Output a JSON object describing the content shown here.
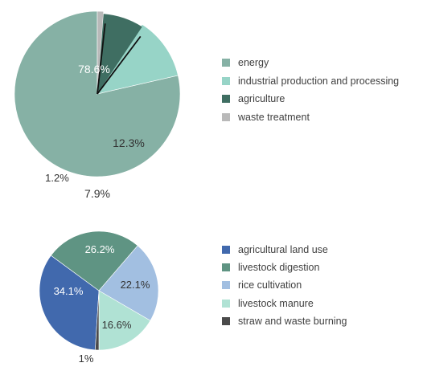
{
  "chart_data": [
    {
      "type": "pie",
      "slices": [
        {
          "label": "energy",
          "value": 78.6,
          "value_label": "78.6%",
          "color": "#86b1a5"
        },
        {
          "label": "industrial production and processing",
          "value": 12.3,
          "value_label": "12.3%",
          "color": "#97d4c7"
        },
        {
          "label": "agriculture",
          "value": 7.9,
          "value_label": "7.9%",
          "color": "#3f6e62",
          "exploded": true
        },
        {
          "label": "waste treatment",
          "value": 1.2,
          "value_label": "1.2%",
          "color": "#b9b9b9"
        }
      ],
      "legend_position": "right"
    },
    {
      "type": "pie",
      "slices": [
        {
          "label": "agricultural land use",
          "value": 34.1,
          "value_label": "34.1%",
          "color": "#4169ad"
        },
        {
          "label": "livestock digestion",
          "value": 26.2,
          "value_label": "26.2%",
          "color": "#5f9483"
        },
        {
          "label": "rice cultivation",
          "value": 22.1,
          "value_label": "22.1%",
          "color": "#a2bfe1"
        },
        {
          "label": "livestock manure",
          "value": 16.6,
          "value_label": "16.6%",
          "color": "#b0e2d4"
        },
        {
          "label": "straw and waste burning",
          "value": 1.0,
          "value_label": "1%",
          "color": "#4a4a4a"
        }
      ],
      "legend_position": "right"
    }
  ]
}
